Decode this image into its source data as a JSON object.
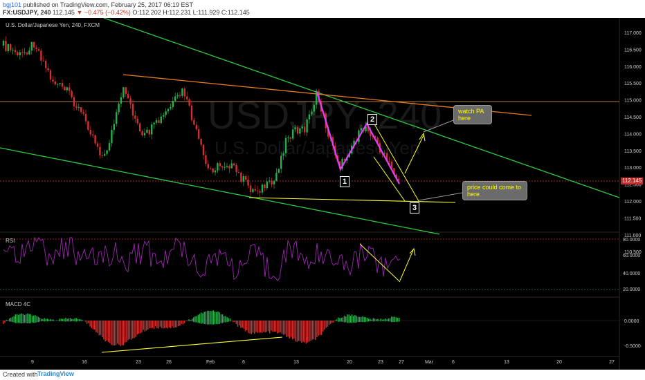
{
  "header": {
    "user": "bgj101",
    "published": " published on TradingView.com, February 25, 2017 06:19 EST",
    "symbol": "FX:USDJPY, 240",
    "last": "112.145",
    "change": "▼ −0.475 (−0.42%)",
    "ohlc": "O:112.202 H:112.231 L:111.929 C:112.145"
  },
  "chart": {
    "title": "U.S. Dollar/Japanese Yen, 240, FXCM",
    "watermark_symbol": "USDJPY, 240",
    "watermark_name": "U.S. Dollar/Japanese Yen",
    "price_axis": [
      "117.000",
      "116.500",
      "116.000",
      "115.500",
      "115.000",
      "114.500",
      "114.000",
      "113.500",
      "113.000",
      "112.500",
      "112.000",
      "111.500",
      "111.000",
      "110.500"
    ],
    "current_price": "112.145",
    "rsi_label": "RSI",
    "rsi_axis": [
      "80.0000",
      "60.0000",
      "40.0000",
      "20.0000"
    ],
    "macd_label": "MACD 4C",
    "macd_axis": [
      "0.0000",
      "-0.5000"
    ],
    "time_axis": [
      "9",
      "16",
      "23",
      "26",
      "Feb",
      "6",
      "13",
      "20",
      "23",
      "27",
      "Mar",
      "6",
      "13",
      "20",
      "27"
    ],
    "badges": [
      "1",
      "2",
      "3"
    ],
    "note_watch": "watch PA here",
    "note_price": "price could come to here"
  },
  "footer": {
    "created": "Created with",
    "logo": "TradingView"
  },
  "colors": {
    "bull": "#22b14c",
    "bear": "#d32f2f",
    "trendline_green": "#2ecc40",
    "trendline_orange": "#e67e22",
    "trendline_yellow": "#ffff33",
    "pattern_magenta": "#e040fb",
    "rsi_line": "#9c27b0"
  }
}
